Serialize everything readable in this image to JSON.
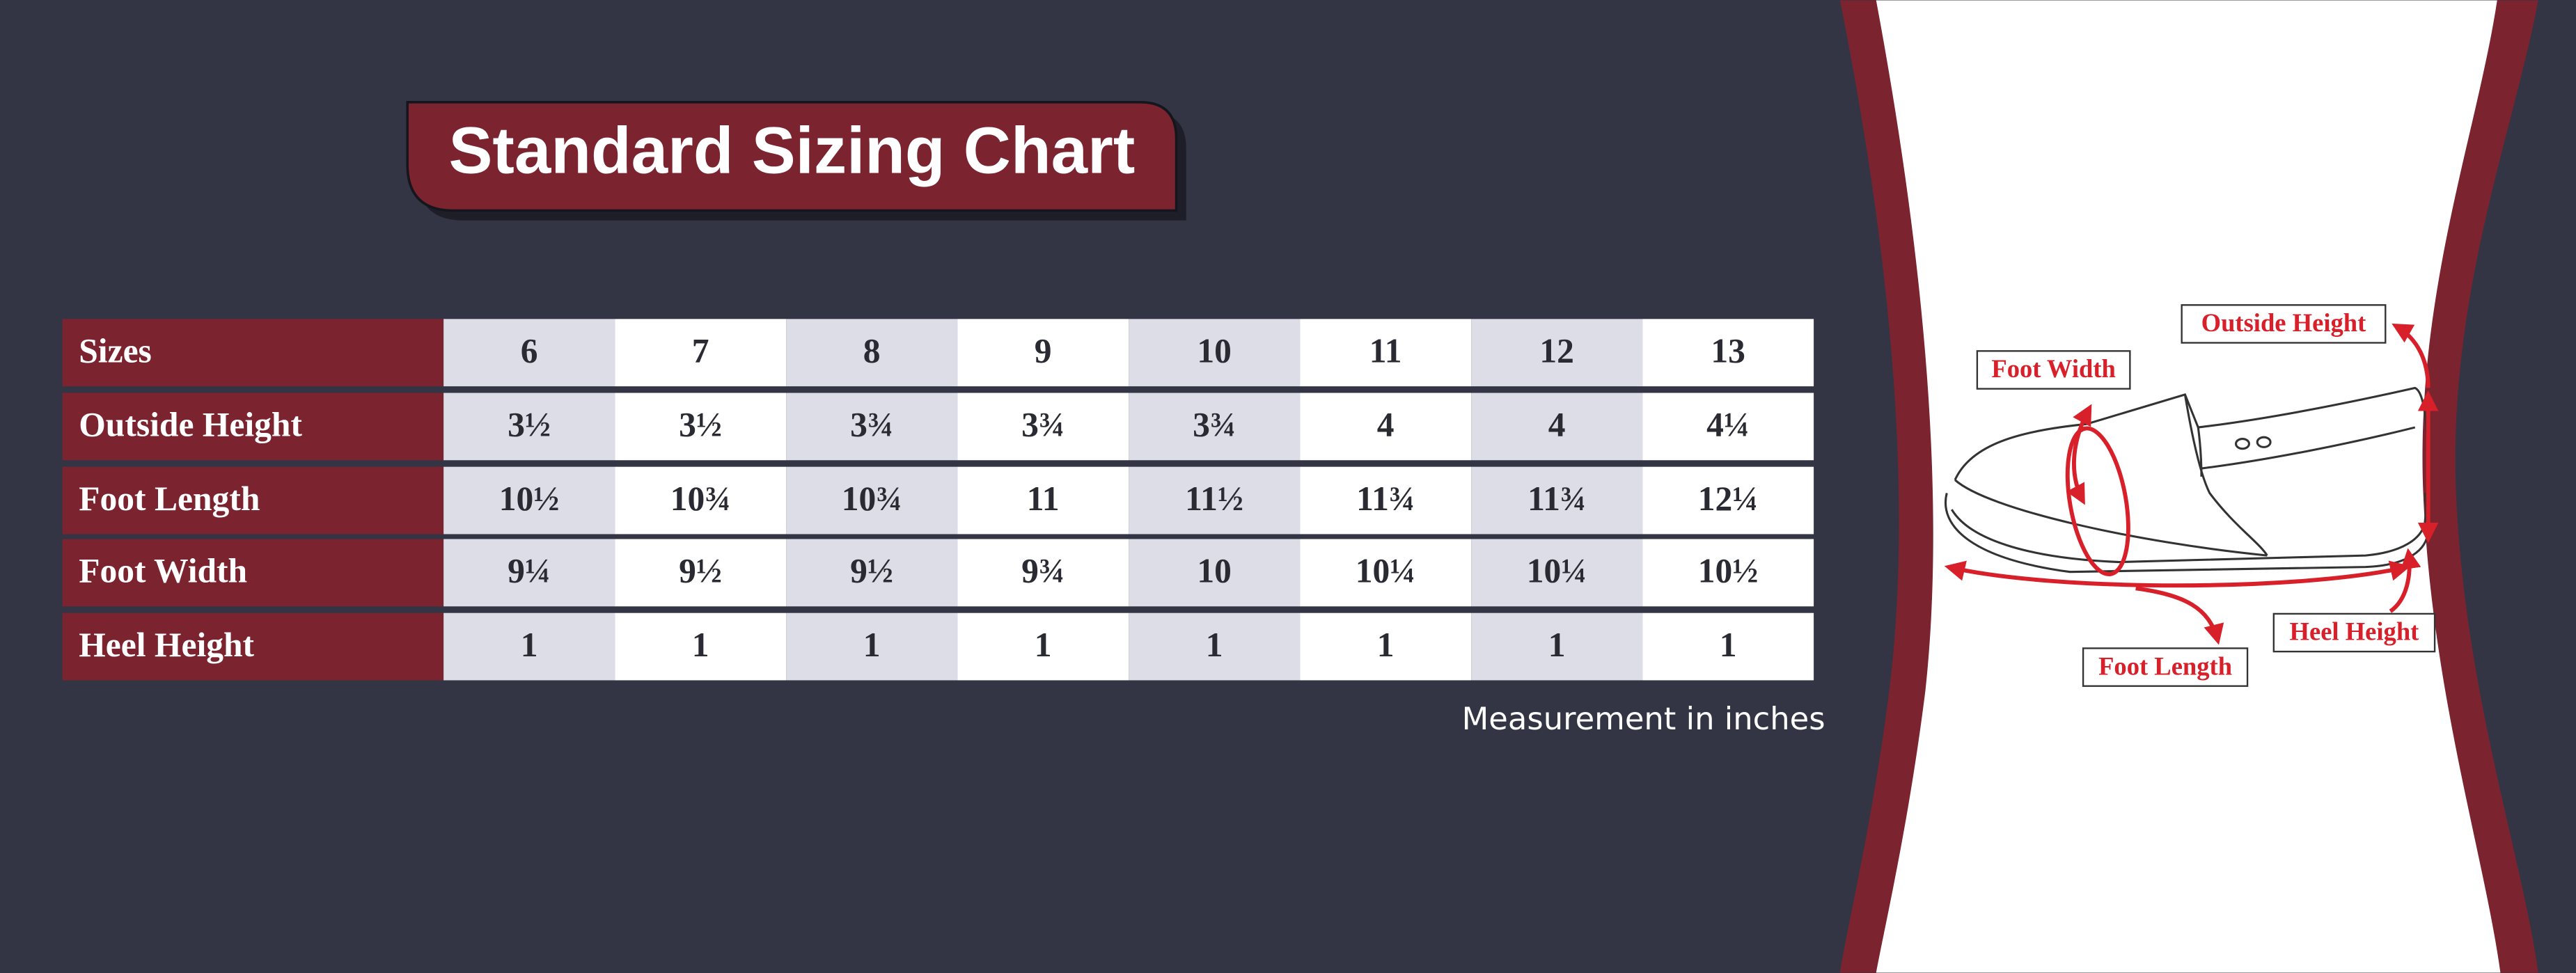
{
  "header": {
    "title": "Standard Sizing Chart"
  },
  "table": {
    "header": [
      "Sizes",
      "6",
      "7",
      "8",
      "9",
      "10",
      "11",
      "12",
      "13"
    ],
    "rows": [
      [
        "Outside Height",
        "3½",
        "3½",
        "3¾",
        "3¾",
        "3¾",
        "4",
        "4",
        "4¼"
      ],
      [
        "Foot Length",
        "10½",
        "10¾",
        "10¾",
        "11",
        "11½",
        "11¾",
        "11¾",
        "12¼"
      ],
      [
        "Foot Width",
        "9¼",
        "9½",
        "9½",
        "9¾",
        "10",
        "10¼",
        "10¼",
        "10½"
      ],
      [
        "Heel Height",
        "1",
        "1",
        "1",
        "1",
        "1",
        "1",
        "1",
        "1"
      ]
    ]
  },
  "note": "Measurement in inches",
  "diagram": {
    "labels": {
      "outside_height": "Outside Height",
      "foot_width": "Foot Width",
      "heel_height": "Heel Height",
      "foot_length": "Foot Length"
    }
  }
}
